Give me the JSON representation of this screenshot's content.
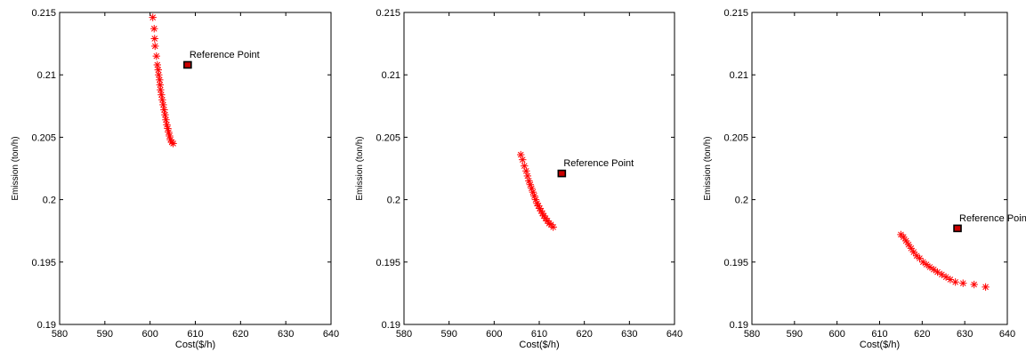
{
  "chart_data": [
    {
      "type": "scatter",
      "xlabel": "Cost($/h)",
      "ylabel": "Emission (ton/h)",
      "xlim": [
        580,
        640
      ],
      "ylim": [
        0.19,
        0.215
      ],
      "xticks": [
        580,
        590,
        600,
        610,
        620,
        630,
        640
      ],
      "yticks": [
        0.19,
        0.195,
        0.2,
        0.205,
        0.21,
        0.215
      ],
      "xtick_labels": [
        "580",
        "590",
        "600",
        "610",
        "620",
        "630",
        "640"
      ],
      "ytick_labels": [
        "0.19",
        "0.195",
        "0.2",
        "0.205",
        "0.21",
        "0.215"
      ],
      "grid": false,
      "series": [
        {
          "marker": "asterisk",
          "color": "#ff0000",
          "points": [
            [
              600.6,
              0.2146
            ],
            [
              600.9,
              0.2137
            ],
            [
              601.0,
              0.2129
            ],
            [
              601.1,
              0.2123
            ],
            [
              601.4,
              0.2115
            ],
            [
              601.6,
              0.2108
            ],
            [
              601.8,
              0.2104
            ],
            [
              601.9,
              0.21
            ],
            [
              602.1,
              0.2096
            ],
            [
              602.2,
              0.2092
            ],
            [
              602.3,
              0.2088
            ],
            [
              602.5,
              0.2084
            ],
            [
              602.7,
              0.208
            ],
            [
              602.9,
              0.2076
            ],
            [
              603.1,
              0.2072
            ],
            [
              603.3,
              0.2068
            ],
            [
              603.5,
              0.2064
            ],
            [
              603.7,
              0.206
            ],
            [
              603.9,
              0.2057
            ],
            [
              604.1,
              0.2054
            ],
            [
              604.3,
              0.2051
            ],
            [
              604.5,
              0.2048
            ],
            [
              604.8,
              0.2046
            ],
            [
              605.1,
              0.2045
            ]
          ]
        }
      ],
      "reference_point": {
        "x": 608.3,
        "y": 0.2108,
        "label": "Reference Point",
        "color": "#000000",
        "fill": "#cc0000"
      }
    },
    {
      "type": "scatter",
      "xlabel": "Cost($/h)",
      "ylabel": "Emission (ton/h)",
      "xlim": [
        580,
        640
      ],
      "ylim": [
        0.19,
        0.215
      ],
      "xticks": [
        580,
        590,
        600,
        610,
        620,
        630,
        640
      ],
      "yticks": [
        0.19,
        0.195,
        0.2,
        0.205,
        0.21,
        0.215
      ],
      "xtick_labels": [
        "580",
        "590",
        "600",
        "610",
        "620",
        "630",
        "640"
      ],
      "ytick_labels": [
        "0.19",
        "0.195",
        "0.2",
        "0.205",
        "0.21",
        "0.215"
      ],
      "grid": false,
      "series": [
        {
          "marker": "asterisk",
          "color": "#ff0000",
          "points": [
            [
              605.9,
              0.2036
            ],
            [
              606.3,
              0.2032
            ],
            [
              606.7,
              0.2027
            ],
            [
              607.1,
              0.2023
            ],
            [
              607.4,
              0.2019
            ],
            [
              607.7,
              0.2015
            ],
            [
              608.0,
              0.2012
            ],
            [
              608.3,
              0.2009
            ],
            [
              608.6,
              0.2006
            ],
            [
              608.9,
              0.2003
            ],
            [
              609.2,
              0.2
            ],
            [
              609.5,
              0.1997
            ],
            [
              609.8,
              0.1995
            ],
            [
              610.1,
              0.1993
            ],
            [
              610.4,
              0.1991
            ],
            [
              610.7,
              0.1989
            ],
            [
              611.0,
              0.1987
            ],
            [
              611.4,
              0.1985
            ],
            [
              611.8,
              0.1983
            ],
            [
              612.2,
              0.1981
            ],
            [
              612.6,
              0.198
            ],
            [
              613.1,
              0.1978
            ]
          ]
        }
      ],
      "reference_point": {
        "x": 615.0,
        "y": 0.2021,
        "label": "Reference Point",
        "color": "#000000",
        "fill": "#cc0000"
      }
    },
    {
      "type": "scatter",
      "xlabel": "Cost($/h)",
      "ylabel": "Emission (ton/h)",
      "xlim": [
        580,
        640
      ],
      "ylim": [
        0.19,
        0.215
      ],
      "xticks": [
        580,
        590,
        600,
        610,
        620,
        630,
        640
      ],
      "yticks": [
        0.19,
        0.195,
        0.2,
        0.205,
        0.21,
        0.215
      ],
      "xtick_labels": [
        "580",
        "590",
        "600",
        "610",
        "620",
        "630",
        "640"
      ],
      "ytick_labels": [
        "0.19",
        "0.195",
        "0.2",
        "0.205",
        "0.21",
        "0.215"
      ],
      "grid": false,
      "series": [
        {
          "marker": "asterisk",
          "color": "#ff0000",
          "points": [
            [
              615.0,
              0.1972
            ],
            [
              615.6,
              0.197
            ],
            [
              616.2,
              0.1967
            ],
            [
              616.8,
              0.1964
            ],
            [
              617.4,
              0.1961
            ],
            [
              618.0,
              0.1958
            ],
            [
              618.7,
              0.1955
            ],
            [
              619.4,
              0.1953
            ],
            [
              620.2,
              0.195
            ],
            [
              621.0,
              0.1948
            ],
            [
              621.8,
              0.1946
            ],
            [
              622.7,
              0.1944
            ],
            [
              623.6,
              0.1942
            ],
            [
              624.6,
              0.194
            ],
            [
              625.6,
              0.1938
            ],
            [
              626.6,
              0.1936
            ],
            [
              627.8,
              0.1934
            ],
            [
              629.6,
              0.1933
            ],
            [
              632.2,
              0.1932
            ],
            [
              634.9,
              0.193
            ]
          ]
        }
      ],
      "reference_point": {
        "x": 628.3,
        "y": 0.1977,
        "label": "Reference Point",
        "color": "#000000",
        "fill": "#cc0000"
      }
    }
  ]
}
